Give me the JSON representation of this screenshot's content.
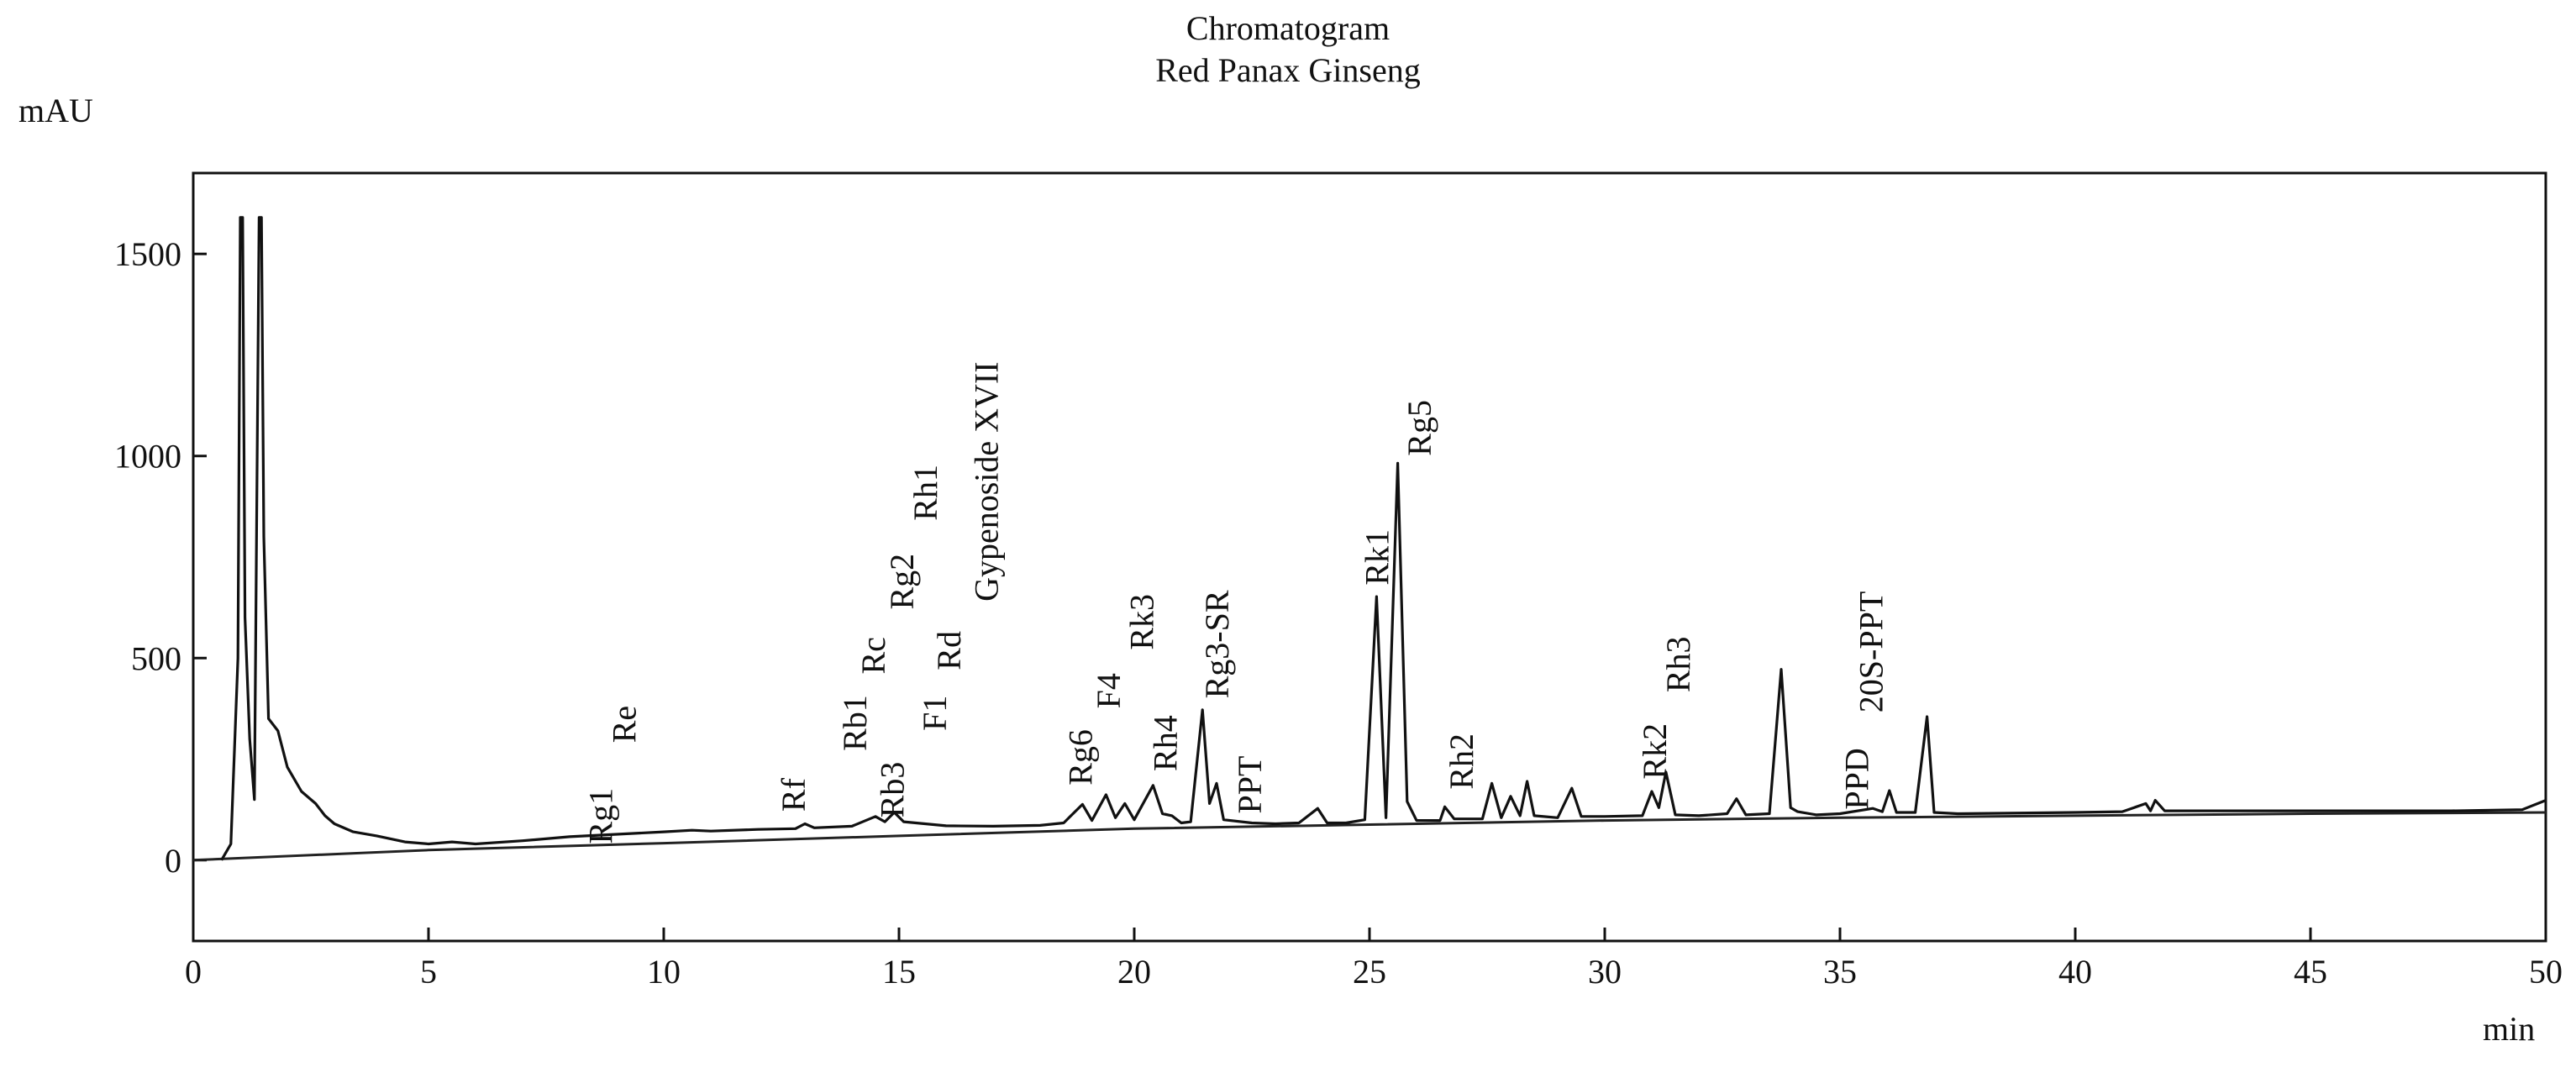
{
  "chart_data": {
    "type": "line",
    "title": "Chromatogram",
    "subtitle": "Red Panax Ginseng",
    "xlabel": "min",
    "ylabel": "mAU",
    "xlim": [
      0,
      50
    ],
    "ylim": [
      -200,
      1700
    ],
    "x_ticks": [
      0,
      5,
      10,
      15,
      20,
      25,
      30,
      35,
      40,
      45,
      50
    ],
    "y_ticks": [
      0,
      500,
      1000,
      1500
    ],
    "grid": false,
    "legend": "none",
    "line_color": "#111111",
    "baseline": {
      "points": [
        [
          0,
          0
        ],
        [
          5,
          25
        ],
        [
          10,
          42
        ],
        [
          15,
          60
        ],
        [
          20,
          78
        ],
        [
          25,
          88
        ],
        [
          30,
          98
        ],
        [
          35,
          105
        ],
        [
          40,
          110
        ],
        [
          45,
          115
        ],
        [
          50,
          118
        ]
      ]
    },
    "series": [
      {
        "values": [
          [
            0.6,
            0
          ],
          [
            0.8,
            40
          ],
          [
            0.95,
            500
          ],
          [
            1.0,
            1590
          ],
          [
            1.05,
            1590
          ],
          [
            1.1,
            600
          ],
          [
            1.2,
            300
          ],
          [
            1.3,
            150
          ],
          [
            1.4,
            1590
          ],
          [
            1.45,
            1590
          ],
          [
            1.5,
            800
          ],
          [
            1.6,
            350
          ],
          [
            1.8,
            320
          ],
          [
            2.0,
            230
          ],
          [
            2.3,
            170
          ],
          [
            2.5,
            150
          ],
          [
            2.6,
            140
          ],
          [
            2.8,
            110
          ],
          [
            3.0,
            90
          ],
          [
            3.4,
            70
          ],
          [
            3.9,
            60
          ],
          [
            4.5,
            45
          ],
          [
            5.0,
            40
          ],
          [
            5.5,
            45
          ],
          [
            6.0,
            40
          ],
          [
            7.0,
            48
          ],
          [
            8.0,
            58
          ],
          [
            9.0,
            64
          ],
          [
            10.0,
            70
          ],
          [
            10.6,
            74
          ],
          [
            11.0,
            72
          ],
          [
            12.0,
            76
          ],
          [
            12.8,
            78
          ],
          [
            13.0,
            90
          ],
          [
            13.2,
            80
          ],
          [
            14.0,
            84
          ],
          [
            14.5,
            108
          ],
          [
            14.7,
            95
          ],
          [
            14.9,
            118
          ],
          [
            15.1,
            95
          ],
          [
            16.0,
            85
          ],
          [
            17.0,
            84
          ],
          [
            18.0,
            86
          ],
          [
            18.5,
            92
          ],
          [
            18.9,
            138
          ],
          [
            19.1,
            98
          ],
          [
            19.4,
            162
          ],
          [
            19.6,
            105
          ],
          [
            19.8,
            140
          ],
          [
            20.0,
            100
          ],
          [
            20.4,
            185
          ],
          [
            20.6,
            115
          ],
          [
            20.8,
            110
          ],
          [
            21.0,
            92
          ],
          [
            21.2,
            95
          ],
          [
            21.45,
            372
          ],
          [
            21.6,
            140
          ],
          [
            21.75,
            190
          ],
          [
            21.9,
            100
          ],
          [
            22.5,
            92
          ],
          [
            23.0,
            90
          ],
          [
            23.5,
            92
          ],
          [
            23.9,
            128
          ],
          [
            24.1,
            92
          ],
          [
            24.5,
            92
          ],
          [
            24.9,
            100
          ],
          [
            25.15,
            652
          ],
          [
            25.35,
            105
          ],
          [
            25.6,
            982
          ],
          [
            25.8,
            145
          ],
          [
            26.0,
            98
          ],
          [
            26.5,
            98
          ],
          [
            26.6,
            132
          ],
          [
            26.8,
            102
          ],
          [
            27.4,
            102
          ],
          [
            27.6,
            190
          ],
          [
            27.8,
            105
          ],
          [
            28.0,
            158
          ],
          [
            28.2,
            110
          ],
          [
            28.35,
            195
          ],
          [
            28.5,
            110
          ],
          [
            29.0,
            105
          ],
          [
            29.3,
            178
          ],
          [
            29.5,
            108
          ],
          [
            30.0,
            108
          ],
          [
            30.8,
            110
          ],
          [
            31.0,
            170
          ],
          [
            31.15,
            130
          ],
          [
            31.3,
            218
          ],
          [
            31.5,
            112
          ],
          [
            32.0,
            110
          ],
          [
            32.6,
            115
          ],
          [
            32.8,
            152
          ],
          [
            33.0,
            112
          ],
          [
            33.5,
            115
          ],
          [
            33.75,
            472
          ],
          [
            33.95,
            130
          ],
          [
            34.1,
            120
          ],
          [
            34.5,
            112
          ],
          [
            35.0,
            115
          ],
          [
            35.7,
            128
          ],
          [
            35.9,
            120
          ],
          [
            36.05,
            172
          ],
          [
            36.2,
            118
          ],
          [
            36.6,
            118
          ],
          [
            36.85,
            355
          ],
          [
            37.0,
            118
          ],
          [
            37.5,
            115
          ],
          [
            40.0,
            118
          ],
          [
            41.0,
            120
          ],
          [
            41.5,
            140
          ],
          [
            41.6,
            122
          ],
          [
            41.7,
            148
          ],
          [
            41.9,
            122
          ],
          [
            45.0,
            122
          ],
          [
            48.0,
            122
          ],
          [
            49.5,
            125
          ],
          [
            50.0,
            148
          ]
        ]
      }
    ],
    "peak_labels": [
      {
        "text": "Rg1",
        "x": 8.9,
        "y": 40
      },
      {
        "text": "Re",
        "x": 9.4,
        "y": 290
      },
      {
        "text": "Rf",
        "x": 13.0,
        "y": 120
      },
      {
        "text": "Rb1",
        "x": 14.3,
        "y": 270
      },
      {
        "text": "Rc",
        "x": 14.7,
        "y": 460
      },
      {
        "text": "Rb3",
        "x": 15.1,
        "y": 105
      },
      {
        "text": "Rg2",
        "x": 15.3,
        "y": 620
      },
      {
        "text": "Rh1",
        "x": 15.8,
        "y": 840
      },
      {
        "text": "F1",
        "x": 16.0,
        "y": 320
      },
      {
        "text": "Rd",
        "x": 16.3,
        "y": 470
      },
      {
        "text": "Gypenoside XVII",
        "x": 17.1,
        "y": 640
      },
      {
        "text": "Rg6",
        "x": 19.1,
        "y": 185
      },
      {
        "text": "F4",
        "x": 19.7,
        "y": 375
      },
      {
        "text": "Rk3",
        "x": 20.4,
        "y": 520
      },
      {
        "text": "Rh4",
        "x": 20.9,
        "y": 220
      },
      {
        "text": "Rg3-SR",
        "x": 22.0,
        "y": 400
      },
      {
        "text": "PPT",
        "x": 22.7,
        "y": 115
      },
      {
        "text": "Rk1",
        "x": 25.4,
        "y": 680
      },
      {
        "text": "Rg5",
        "x": 26.3,
        "y": 1000
      },
      {
        "text": "Rh2",
        "x": 27.2,
        "y": 175
      },
      {
        "text": "Rk2",
        "x": 31.3,
        "y": 200
      },
      {
        "text": "Rh3",
        "x": 31.8,
        "y": 415
      },
      {
        "text": "PPD",
        "x": 35.6,
        "y": 125
      },
      {
        "text": "20S-PPT",
        "x": 35.9,
        "y": 365
      }
    ]
  }
}
